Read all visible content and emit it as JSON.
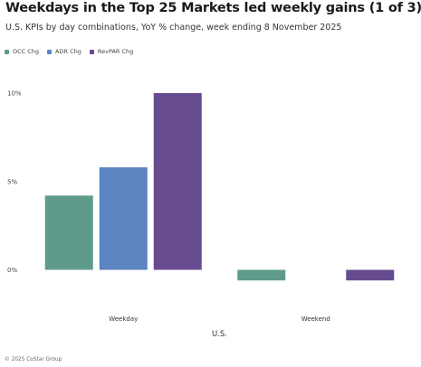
{
  "header": {
    "title": "Weekdays in the Top 25 Markets led weekly gains (1 of 3)",
    "subtitle": "U.S. KPIs by day combinations, YoY % change, week ending 8 November 2025"
  },
  "footer": {
    "copyright": "© 2025 CoStar Group"
  },
  "colors": {
    "occ": "#5f9b8b",
    "adr": "#5b84c0",
    "revpar": "#674b91"
  },
  "chart_data": {
    "type": "bar",
    "title": "Weekdays in the Top 25 Markets led weekly gains (1 of 3)",
    "subtitle": "U.S. KPIs by day combinations, YoY % change, week ending 8 November 2025",
    "xlabel": "U.S.",
    "ylabel": "",
    "categories": [
      "Weekday",
      "Weekend"
    ],
    "series": [
      {
        "name": "OCC Chg",
        "color": "#5f9b8b",
        "values": [
          4.2,
          -0.6
        ]
      },
      {
        "name": "ADR Chg",
        "color": "#5b84c0",
        "values": [
          5.8,
          0.0
        ]
      },
      {
        "name": "RevPAR Chg",
        "color": "#674b91",
        "values": [
          10.0,
          -0.6
        ]
      }
    ],
    "ylim": [
      -0.6,
      10.0
    ],
    "yticks": [
      0,
      5,
      10
    ],
    "ytick_labels": [
      "0%",
      "5%",
      "10%"
    ],
    "legend_position": "top-left",
    "grid": false
  }
}
